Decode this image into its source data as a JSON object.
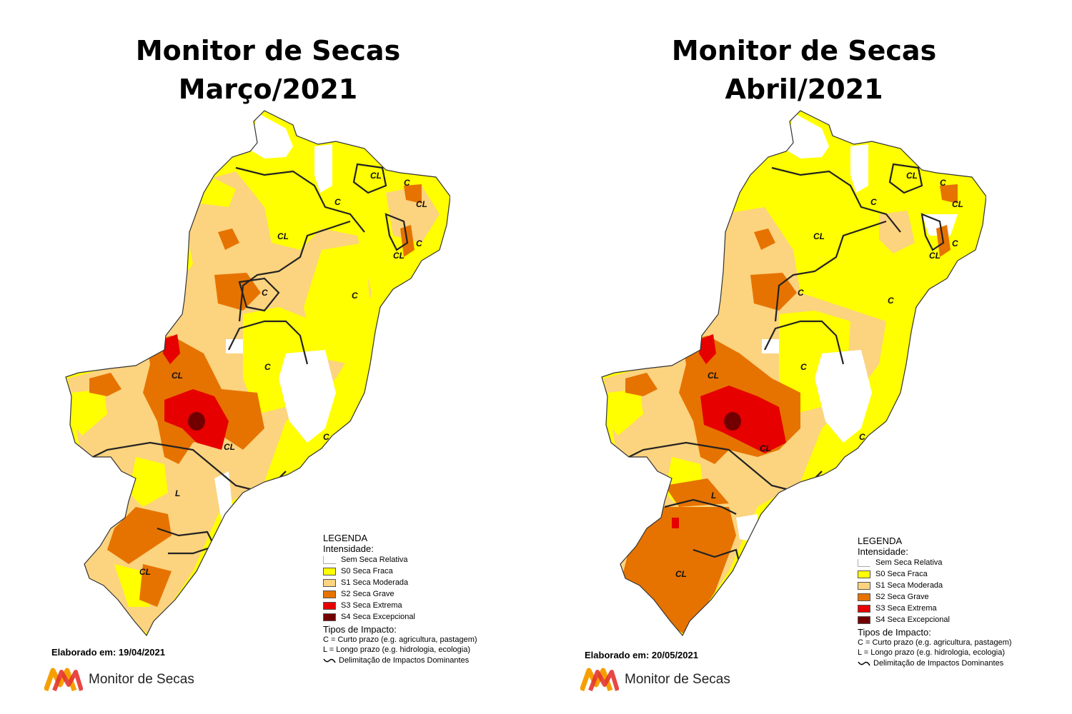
{
  "panels": [
    {
      "title_line1": "Monitor de Secas",
      "title_line2": "Março/2021",
      "elaborado": "Elaborado em: 19/04/2021",
      "impact_labels": [
        "CL",
        "C",
        "CL",
        "C",
        "CL",
        "CL",
        "C",
        "C",
        "C",
        "CL",
        "C",
        "CL",
        "C",
        "L",
        "CL"
      ]
    },
    {
      "title_line1": "Monitor de Secas",
      "title_line2": "Abril/2021",
      "elaborado": "Elaborado em: 20/05/2021",
      "impact_labels": [
        "CL",
        "C",
        "CL",
        "C",
        "CL",
        "CL",
        "C",
        "C",
        "C",
        "CL",
        "C",
        "CL",
        "C",
        "L",
        "CL"
      ]
    }
  ],
  "legend": {
    "title": "LEGENDA",
    "intensity_label": "Intensidade:",
    "items": [
      {
        "label": "Sem Seca Relativa",
        "color": "#ffffff"
      },
      {
        "label": "S0 Seca Fraca",
        "color": "#ffff00"
      },
      {
        "label": "S1 Seca Moderada",
        "color": "#fcd37f"
      },
      {
        "label": "S2 Seca Grave",
        "color": "#e67300"
      },
      {
        "label": "S3 Seca Extrema",
        "color": "#e60000"
      },
      {
        "label": "S4 Seca Excepcional",
        "color": "#730000"
      }
    ],
    "impact_title": "Tipos de Impacto:",
    "impact_c": "C = Curto prazo (e.g. agricultura, pastagem)",
    "impact_l": "L = Longo prazo (e.g. hidrologia, ecologia)",
    "delimitation": "Delimitação de Impactos Dominantes"
  },
  "brand": {
    "name": "Monitor de Secas"
  }
}
